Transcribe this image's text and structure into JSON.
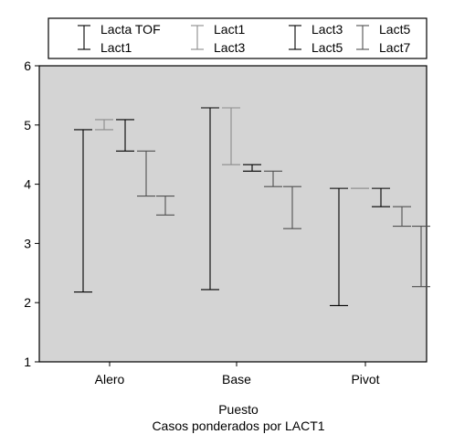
{
  "chart_data": {
    "type": "range-bar",
    "categories": [
      "Alero",
      "Base",
      "Pivot"
    ],
    "ylim": [
      1,
      6
    ],
    "yticks": [
      1,
      2,
      3,
      4,
      5,
      6
    ],
    "xlabel": "Puesto",
    "note": "Casos ponderados por LACT1",
    "legend_position": "top",
    "background": "#d4d4d4",
    "grid": false,
    "series": [
      {
        "upper": "Lacta TOF",
        "lower": "Lact1",
        "color": "#000000",
        "values": [
          [
            2.18,
            4.92
          ],
          [
            2.22,
            5.29
          ],
          [
            1.95,
            3.93
          ]
        ]
      },
      {
        "upper": "Lact1",
        "lower": "Lact3",
        "color": "#8c8c8c",
        "values": [
          [
            4.92,
            5.09
          ],
          [
            4.33,
            5.29
          ],
          [
            3.93,
            3.93
          ]
        ]
      },
      {
        "upper": "Lact3",
        "lower": "Lact5",
        "color": "#000000",
        "values": [
          [
            4.56,
            5.09
          ],
          [
            4.22,
            4.33
          ],
          [
            3.62,
            3.93
          ]
        ]
      },
      {
        "upper": "Lact5",
        "lower": "Lact7",
        "color": "#505050",
        "values": [
          [
            3.8,
            4.56
          ],
          [
            3.96,
            4.22
          ],
          [
            3.29,
            3.62
          ]
        ]
      },
      {
        "upper": "Lact7",
        "lower": "",
        "color": "#505050",
        "values": [
          [
            3.48,
            3.8
          ],
          [
            3.25,
            3.96
          ],
          [
            2.27,
            3.29
          ]
        ]
      }
    ]
  }
}
